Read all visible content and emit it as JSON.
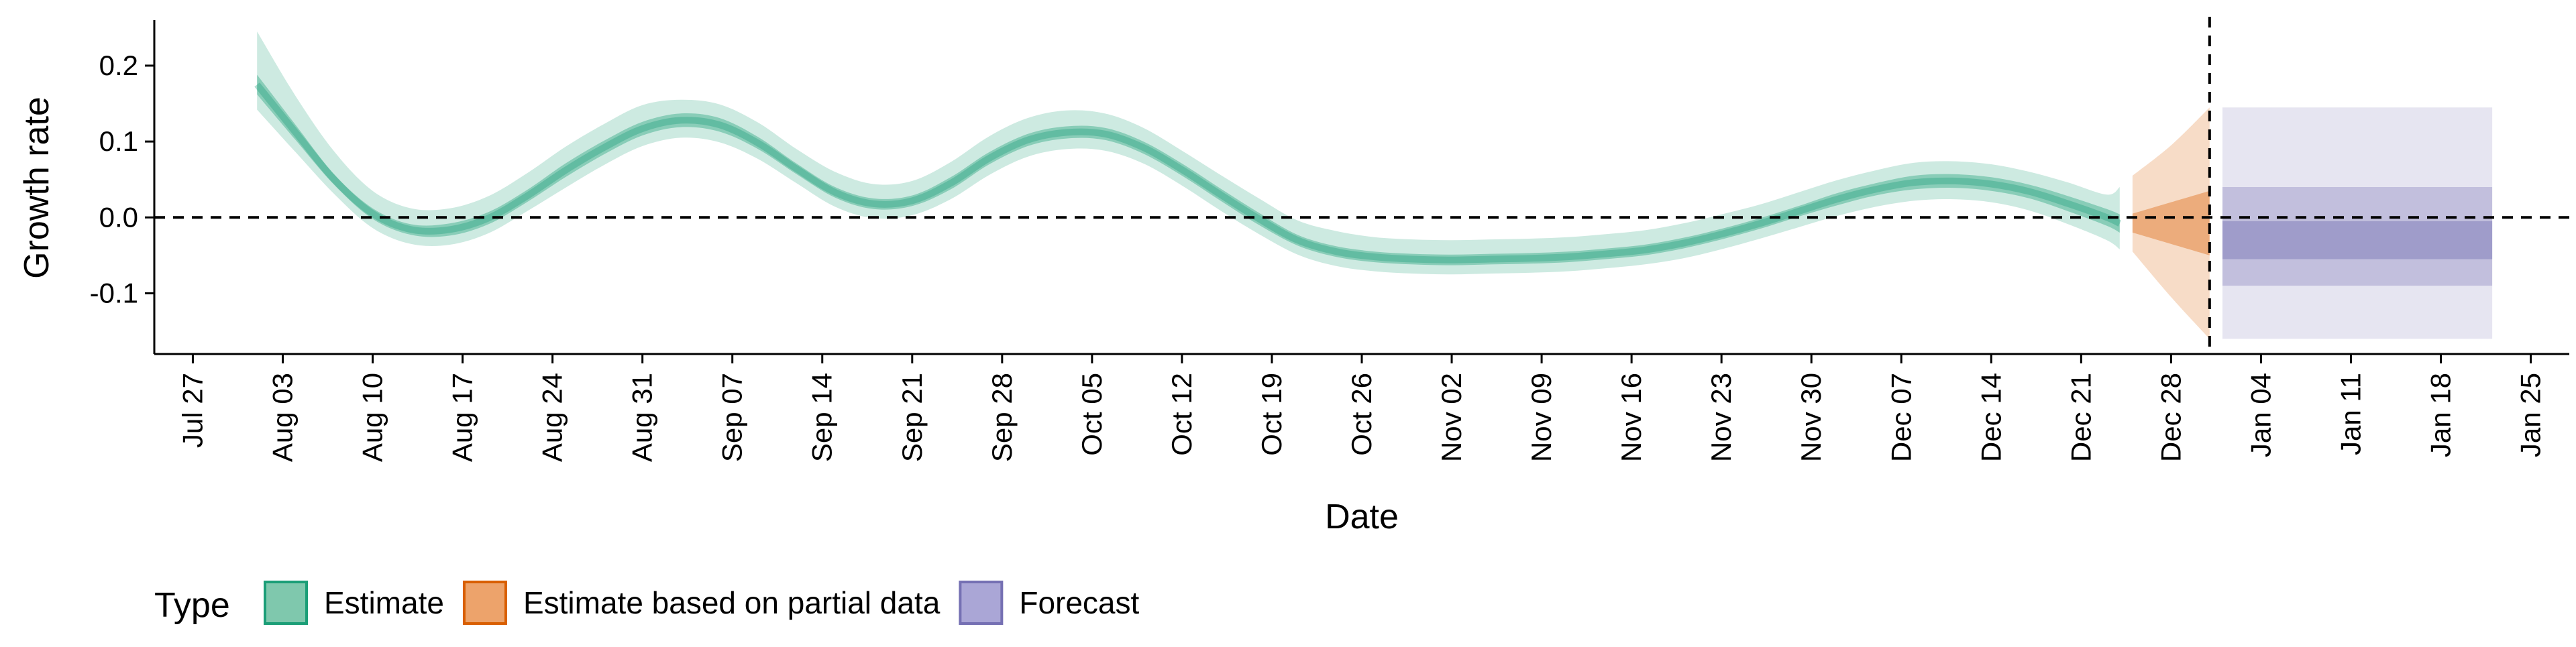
{
  "chart_data": {
    "type": "area",
    "xlabel": "Date",
    "ylabel": "Growth rate",
    "xlim": [
      "2020-07-24",
      "2021-01-28"
    ],
    "ylim": [
      -0.18,
      0.26
    ],
    "y_ticks": [
      -0.1,
      0.0,
      0.1,
      0.2
    ],
    "y_tick_labels": [
      "-0.1",
      "0.0",
      "0.1",
      "0.2"
    ],
    "x_ticks": [
      "2020-07-27",
      "2020-08-03",
      "2020-08-10",
      "2020-08-17",
      "2020-08-24",
      "2020-08-31",
      "2020-09-07",
      "2020-09-14",
      "2020-09-21",
      "2020-09-28",
      "2020-10-05",
      "2020-10-12",
      "2020-10-19",
      "2020-10-26",
      "2020-11-02",
      "2020-11-09",
      "2020-11-16",
      "2020-11-23",
      "2020-11-30",
      "2020-12-07",
      "2020-12-14",
      "2020-12-21",
      "2020-12-28",
      "2021-01-04",
      "2021-01-11",
      "2021-01-18",
      "2021-01-25"
    ],
    "x_tick_labels": [
      "Jul 27",
      "Aug 03",
      "Aug 10",
      "Aug 17",
      "Aug 24",
      "Aug 31",
      "Sep 07",
      "Sep 14",
      "Sep 21",
      "Sep 28",
      "Oct 05",
      "Oct 12",
      "Oct 19",
      "Oct 26",
      "Nov 02",
      "Nov 09",
      "Nov 16",
      "Nov 23",
      "Nov 30",
      "Dec 07",
      "Dec 14",
      "Dec 21",
      "Dec 28",
      "Jan 04",
      "Jan 11",
      "Jan 18",
      "Jan 25"
    ],
    "reference_lines": [
      {
        "axis": "y",
        "value": 0.0,
        "style": "dashed"
      },
      {
        "axis": "x",
        "value": "2020-12-31",
        "style": "dashed"
      }
    ],
    "legend": {
      "title": "Type",
      "position": "bottom-left",
      "entries": [
        {
          "label": "Estimate",
          "fill": "#7fc8ad",
          "border": "#1b9e77"
        },
        {
          "label": "Estimate based on partial data",
          "fill": "#eda36b",
          "border": "#d95f02"
        },
        {
          "label": "Forecast",
          "fill": "#aaa6d6",
          "border": "#7570b3"
        }
      ]
    },
    "series": [
      {
        "type": "Estimate",
        "color": "#1b9e77",
        "x": [
          "2020-08-01",
          "2020-08-04",
          "2020-08-07",
          "2020-08-10",
          "2020-08-13",
          "2020-08-16",
          "2020-08-19",
          "2020-08-22",
          "2020-08-25",
          "2020-08-28",
          "2020-08-31",
          "2020-09-03",
          "2020-09-06",
          "2020-09-09",
          "2020-09-12",
          "2020-09-15",
          "2020-09-18",
          "2020-09-21",
          "2020-09-24",
          "2020-09-27",
          "2020-09-30",
          "2020-10-03",
          "2020-10-06",
          "2020-10-09",
          "2020-10-12",
          "2020-10-15",
          "2020-10-18",
          "2020-10-21",
          "2020-10-24",
          "2020-10-27",
          "2020-10-30",
          "2020-11-02",
          "2020-11-05",
          "2020-11-08",
          "2020-11-11",
          "2020-11-14",
          "2020-11-17",
          "2020-11-20",
          "2020-11-23",
          "2020-11-26",
          "2020-11-29",
          "2020-12-02",
          "2020-12-05",
          "2020-12-08",
          "2020-12-11",
          "2020-12-14",
          "2020-12-17",
          "2020-12-20",
          "2020-12-23",
          "2020-12-24"
        ],
        "median": [
          0.175,
          0.112,
          0.05,
          0.005,
          -0.016,
          -0.016,
          -0.001,
          0.028,
          0.062,
          0.092,
          0.117,
          0.128,
          0.122,
          0.098,
          0.064,
          0.033,
          0.018,
          0.022,
          0.045,
          0.078,
          0.102,
          0.112,
          0.11,
          0.092,
          0.063,
          0.03,
          -0.002,
          -0.03,
          -0.045,
          -0.052,
          -0.055,
          -0.056,
          -0.055,
          -0.054,
          -0.052,
          -0.048,
          -0.043,
          -0.034,
          -0.022,
          -0.008,
          0.008,
          0.024,
          0.037,
          0.046,
          0.048,
          0.044,
          0.034,
          0.018,
          0.0,
          -0.008
        ],
        "lower_50": [
          0.162,
          0.102,
          0.043,
          -0.002,
          -0.023,
          -0.024,
          -0.009,
          0.02,
          0.053,
          0.083,
          0.108,
          0.119,
          0.113,
          0.09,
          0.057,
          0.026,
          0.011,
          0.015,
          0.037,
          0.07,
          0.094,
          0.104,
          0.102,
          0.084,
          0.055,
          0.022,
          -0.01,
          -0.037,
          -0.052,
          -0.059,
          -0.062,
          -0.063,
          -0.062,
          -0.061,
          -0.059,
          -0.055,
          -0.05,
          -0.041,
          -0.029,
          -0.015,
          0.001,
          0.016,
          0.029,
          0.037,
          0.039,
          0.035,
          0.025,
          0.008,
          -0.011,
          -0.02
        ],
        "upper_50": [
          0.188,
          0.122,
          0.057,
          0.012,
          -0.009,
          -0.008,
          0.007,
          0.036,
          0.071,
          0.101,
          0.126,
          0.137,
          0.131,
          0.106,
          0.071,
          0.04,
          0.025,
          0.029,
          0.053,
          0.086,
          0.11,
          0.12,
          0.118,
          0.1,
          0.071,
          0.038,
          0.006,
          -0.023,
          -0.038,
          -0.045,
          -0.048,
          -0.049,
          -0.048,
          -0.047,
          -0.045,
          -0.041,
          -0.036,
          -0.027,
          -0.015,
          -0.001,
          0.015,
          0.032,
          0.045,
          0.055,
          0.057,
          0.053,
          0.043,
          0.028,
          0.011,
          0.004
        ],
        "lower_90": [
          0.142,
          0.086,
          0.031,
          -0.014,
          -0.035,
          -0.036,
          -0.021,
          0.008,
          0.039,
          0.069,
          0.094,
          0.105,
          0.099,
          0.077,
          0.045,
          0.014,
          -0.001,
          0.003,
          0.024,
          0.056,
          0.08,
          0.09,
          0.088,
          0.071,
          0.042,
          0.009,
          -0.022,
          -0.049,
          -0.064,
          -0.071,
          -0.074,
          -0.075,
          -0.074,
          -0.073,
          -0.071,
          -0.067,
          -0.062,
          -0.054,
          -0.042,
          -0.028,
          -0.013,
          0.002,
          0.014,
          0.022,
          0.024,
          0.02,
          0.009,
          -0.009,
          -0.03,
          -0.042
        ],
        "upper_90": [
          0.245,
          0.16,
          0.087,
          0.035,
          0.012,
          0.012,
          0.028,
          0.058,
          0.093,
          0.123,
          0.148,
          0.155,
          0.149,
          0.125,
          0.09,
          0.06,
          0.044,
          0.048,
          0.073,
          0.107,
          0.131,
          0.141,
          0.137,
          0.118,
          0.088,
          0.056,
          0.025,
          -0.004,
          -0.018,
          -0.026,
          -0.029,
          -0.03,
          -0.029,
          -0.028,
          -0.026,
          -0.022,
          -0.017,
          -0.008,
          0.004,
          0.017,
          0.033,
          0.049,
          0.062,
          0.072,
          0.074,
          0.07,
          0.06,
          0.046,
          0.03,
          0.04
        ]
      },
      {
        "type": "Estimate based on partial data",
        "color": "#d95f02",
        "x": [
          "2020-12-25",
          "2020-12-28",
          "2020-12-31"
        ],
        "median": [
          -0.012,
          -0.024,
          -0.035
        ],
        "lower_50": [
          -0.02,
          -0.035,
          -0.05
        ],
        "upper_50": [
          0.005,
          0.02,
          0.035
        ],
        "lower_90": [
          -0.045,
          -0.105,
          -0.16
        ],
        "upper_90": [
          0.055,
          0.095,
          0.145
        ]
      },
      {
        "type": "Forecast",
        "color": "#7570b3",
        "x": [
          "2021-01-01",
          "2021-01-22"
        ],
        "median": [
          -0.03,
          -0.03
        ],
        "lower_30": [
          -0.055,
          -0.055
        ],
        "upper_30": [
          -0.005,
          -0.005
        ],
        "lower_60": [
          -0.09,
          -0.09
        ],
        "upper_60": [
          0.04,
          0.04
        ],
        "lower_90": [
          -0.16,
          -0.16
        ],
        "upper_90": [
          0.145,
          0.145
        ]
      }
    ]
  }
}
